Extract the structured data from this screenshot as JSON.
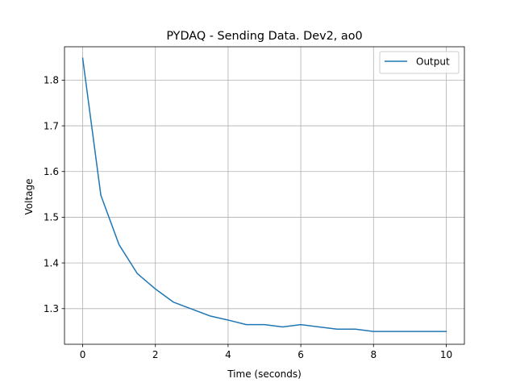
{
  "chart_data": {
    "type": "line",
    "title": "PYDAQ - Sending Data. Dev2, ao0",
    "xlabel": "Time (seconds)",
    "ylabel": "Voltage",
    "xlim": [
      -0.5,
      10.5
    ],
    "ylim": [
      1.222,
      1.873
    ],
    "xticks": [
      0,
      2,
      4,
      6,
      8,
      10
    ],
    "xtick_labels": [
      "0",
      "2",
      "4",
      "6",
      "8",
      "10"
    ],
    "yticks": [
      1.3,
      1.4,
      1.5,
      1.6,
      1.7,
      1.8
    ],
    "ytick_labels": [
      "1.3",
      "1.4",
      "1.5",
      "1.6",
      "1.7",
      "1.8"
    ],
    "grid": true,
    "legend_position": "top-right",
    "series": [
      {
        "name": "Output",
        "color": "#1f77b4",
        "x": [
          0,
          0.5,
          1,
          1.5,
          2,
          2.5,
          3,
          3.5,
          4,
          4.5,
          5,
          5.5,
          6,
          6.5,
          7,
          7.5,
          8,
          8.5,
          9,
          9.5,
          10
        ],
        "y": [
          1.848,
          1.548,
          1.44,
          1.377,
          1.343,
          1.314,
          1.299,
          1.284,
          1.275,
          1.265,
          1.265,
          1.26,
          1.265,
          1.26,
          1.255,
          1.255,
          1.25,
          1.25,
          1.25,
          1.25,
          1.25
        ]
      }
    ]
  }
}
